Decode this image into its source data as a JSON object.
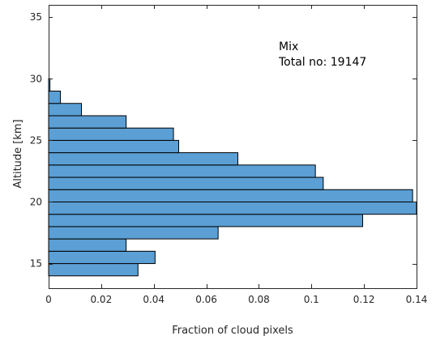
{
  "chart_data": {
    "type": "bar",
    "orientation": "horizontal",
    "xlabel": "Fraction of cloud pixels",
    "ylabel": "Altitude [km]",
    "xlim": [
      0,
      0.14
    ],
    "ylim": [
      13,
      36
    ],
    "xticks": [
      0,
      0.02,
      0.04,
      0.06,
      0.08,
      0.1,
      0.12,
      0.14
    ],
    "xtick_labels": [
      "0",
      "0.02",
      "0.04",
      "0.06",
      "0.08",
      "0.1",
      "0.12",
      "0.14"
    ],
    "yticks": [
      15,
      20,
      25,
      30,
      35
    ],
    "ytick_labels": [
      "15",
      "20",
      "25",
      "30",
      "35"
    ],
    "bin_width": 1,
    "bins": [
      {
        "altitude": 14.5,
        "value": 0.034
      },
      {
        "altitude": 15.5,
        "value": 0.0405
      },
      {
        "altitude": 16.5,
        "value": 0.0295
      },
      {
        "altitude": 17.5,
        "value": 0.0645
      },
      {
        "altitude": 18.5,
        "value": 0.1195
      },
      {
        "altitude": 19.5,
        "value": 0.14
      },
      {
        "altitude": 20.5,
        "value": 0.1385
      },
      {
        "altitude": 21.5,
        "value": 0.1045
      },
      {
        "altitude": 22.5,
        "value": 0.1015
      },
      {
        "altitude": 23.5,
        "value": 0.072
      },
      {
        "altitude": 24.5,
        "value": 0.0495
      },
      {
        "altitude": 25.5,
        "value": 0.0475
      },
      {
        "altitude": 26.5,
        "value": 0.0295
      },
      {
        "altitude": 27.5,
        "value": 0.0125
      },
      {
        "altitude": 28.5,
        "value": 0.0045
      },
      {
        "altitude": 29.5,
        "value": 0.0005
      }
    ],
    "bar_color": "#5b9fd4",
    "annotation": [
      "Mix",
      "Total no: 19147"
    ],
    "grid": false
  }
}
